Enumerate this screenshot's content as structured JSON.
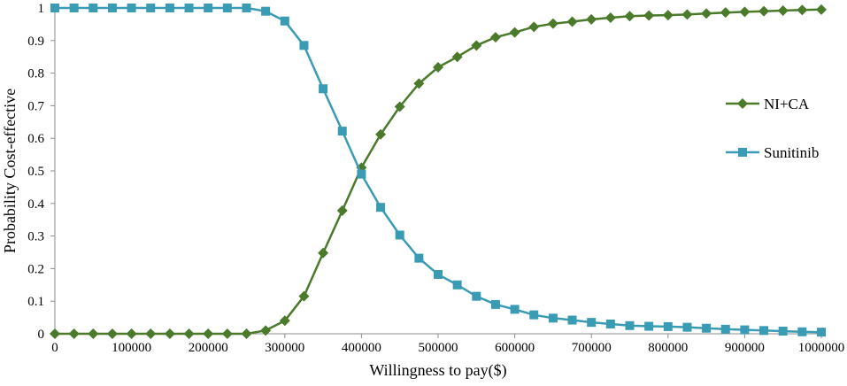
{
  "chart_data": {
    "type": "line",
    "title": "",
    "xlabel": "Willingness to pay($)",
    "ylabel": "Probability Cost-effective",
    "xlim": [
      0,
      1000000
    ],
    "ylim": [
      0,
      1
    ],
    "x_ticks": [
      "0",
      "100000",
      "200000",
      "300000",
      "400000",
      "500000",
      "600000",
      "700000",
      "800000",
      "900000",
      "1000000"
    ],
    "y_ticks": [
      "0",
      "0.1",
      "0.2",
      "0.3",
      "0.4",
      "0.5",
      "0.6",
      "0.7",
      "0.8",
      "0.9",
      "1"
    ],
    "grid": false,
    "legend_position": "right",
    "x": [
      0,
      25000,
      50000,
      75000,
      100000,
      125000,
      150000,
      175000,
      200000,
      225000,
      250000,
      275000,
      300000,
      325000,
      350000,
      375000,
      400000,
      425000,
      450000,
      475000,
      500000,
      525000,
      550000,
      575000,
      600000,
      625000,
      650000,
      675000,
      700000,
      725000,
      750000,
      775000,
      800000,
      825000,
      850000,
      875000,
      900000,
      925000,
      950000,
      975000,
      1000000
    ],
    "series": [
      {
        "name": "NI+CA",
        "color": "#4a7a2a",
        "marker": "diamond",
        "values": [
          0,
          0,
          0,
          0,
          0,
          0,
          0,
          0,
          0,
          0,
          0,
          0.01,
          0.04,
          0.115,
          0.248,
          0.378,
          0.51,
          0.612,
          0.697,
          0.768,
          0.818,
          0.85,
          0.885,
          0.91,
          0.925,
          0.942,
          0.952,
          0.958,
          0.965,
          0.97,
          0.975,
          0.977,
          0.978,
          0.98,
          0.983,
          0.986,
          0.988,
          0.99,
          0.992,
          0.994,
          0.995
        ]
      },
      {
        "name": "Sunitinib",
        "color": "#3a9bb5",
        "marker": "square",
        "values": [
          1,
          1,
          1,
          1,
          1,
          1,
          1,
          1,
          1,
          1,
          1,
          0.99,
          0.96,
          0.885,
          0.752,
          0.622,
          0.49,
          0.388,
          0.303,
          0.232,
          0.182,
          0.15,
          0.115,
          0.09,
          0.075,
          0.058,
          0.048,
          0.042,
          0.035,
          0.03,
          0.025,
          0.023,
          0.022,
          0.02,
          0.017,
          0.014,
          0.012,
          0.01,
          0.008,
          0.006,
          0.005
        ]
      }
    ]
  }
}
